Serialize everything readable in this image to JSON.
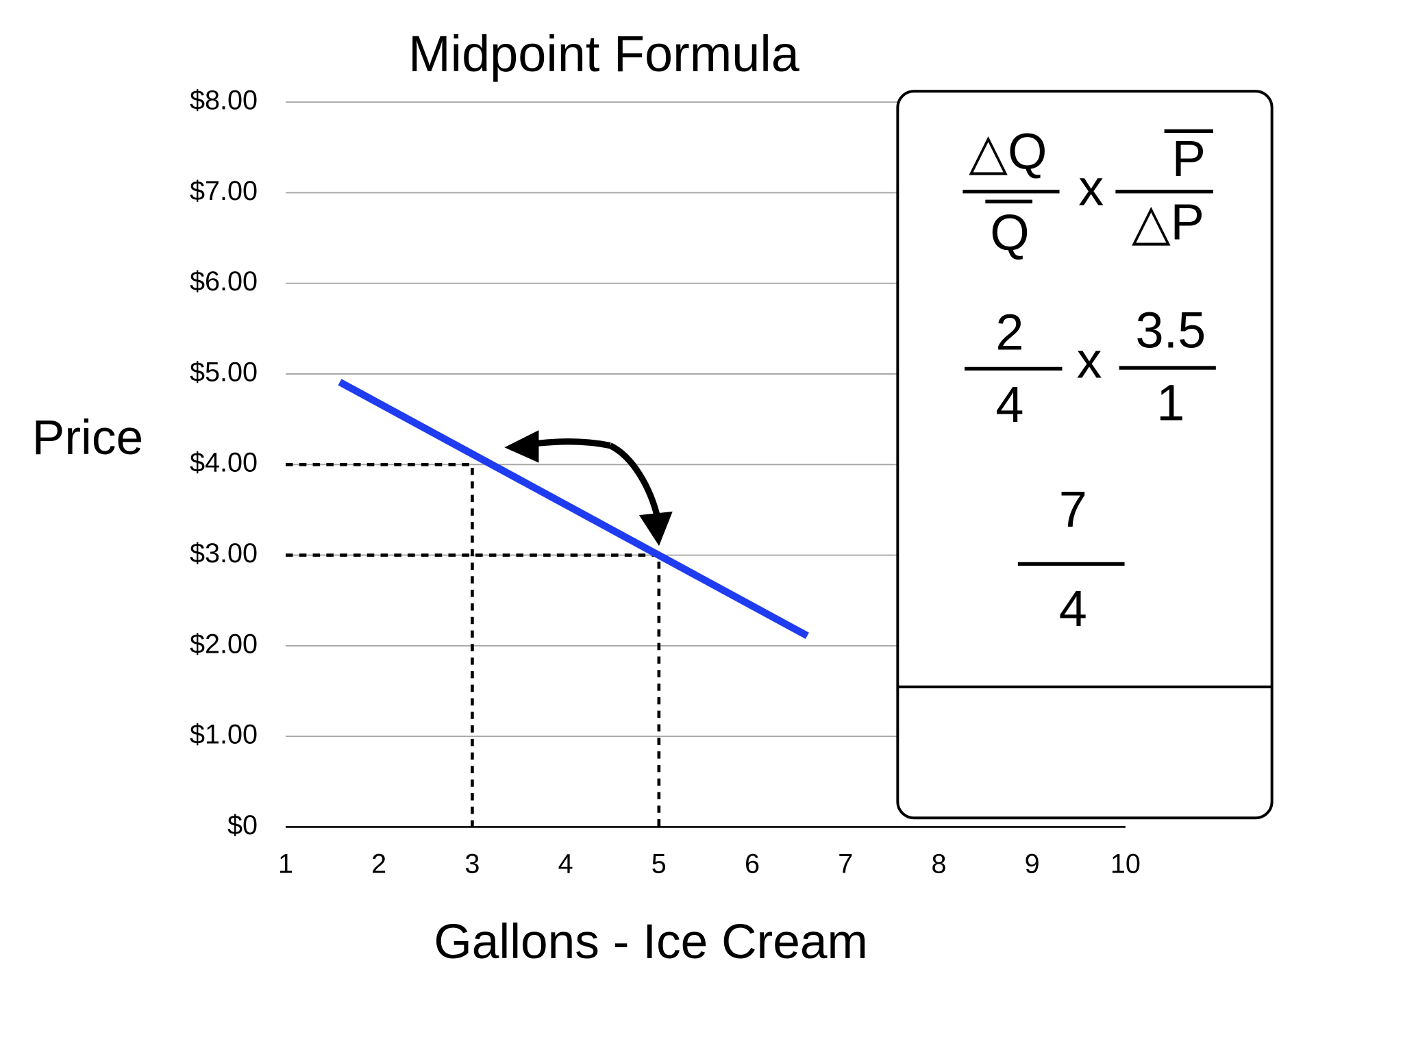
{
  "chart_data": {
    "type": "line",
    "title": "Midpoint Formula",
    "y_label": "Price",
    "x_label": "Gallons - Ice Cream",
    "xlim": [
      1,
      10
    ],
    "xticks": [
      1,
      2,
      3,
      4,
      5,
      6,
      7,
      8,
      9,
      10
    ],
    "ylim": [
      0,
      8
    ],
    "yticks": [
      {
        "value": 0,
        "label": "$0"
      },
      {
        "value": 1,
        "label": "$1.00"
      },
      {
        "value": 2,
        "label": "$2.00"
      },
      {
        "value": 3,
        "label": "$3.00"
      },
      {
        "value": 4,
        "label": "$4.00"
      },
      {
        "value": 5,
        "label": "$5.00"
      },
      {
        "value": 6,
        "label": "$6.00"
      },
      {
        "value": 7,
        "label": "$7.00"
      },
      {
        "value": 8,
        "label": "$8.00"
      }
    ],
    "grid": true,
    "series": [
      {
        "color": "#1f3cf0",
        "x": [
          1.58,
          6.59
        ],
        "values": [
          4.91,
          2.11
        ]
      }
    ],
    "markers": {
      "x": [
        3,
        5
      ],
      "y": [
        4,
        3
      ]
    },
    "formula": {
      "row1": {
        "num1": "△Q",
        "den1": "Q",
        "op": "x",
        "num2": "P",
        "den2": "△P"
      },
      "row2": {
        "num1": "2",
        "den1": "4",
        "op": "x",
        "num2": "3.5",
        "den2": "1"
      },
      "row3": {
        "num": "7",
        "den": "4"
      }
    }
  }
}
